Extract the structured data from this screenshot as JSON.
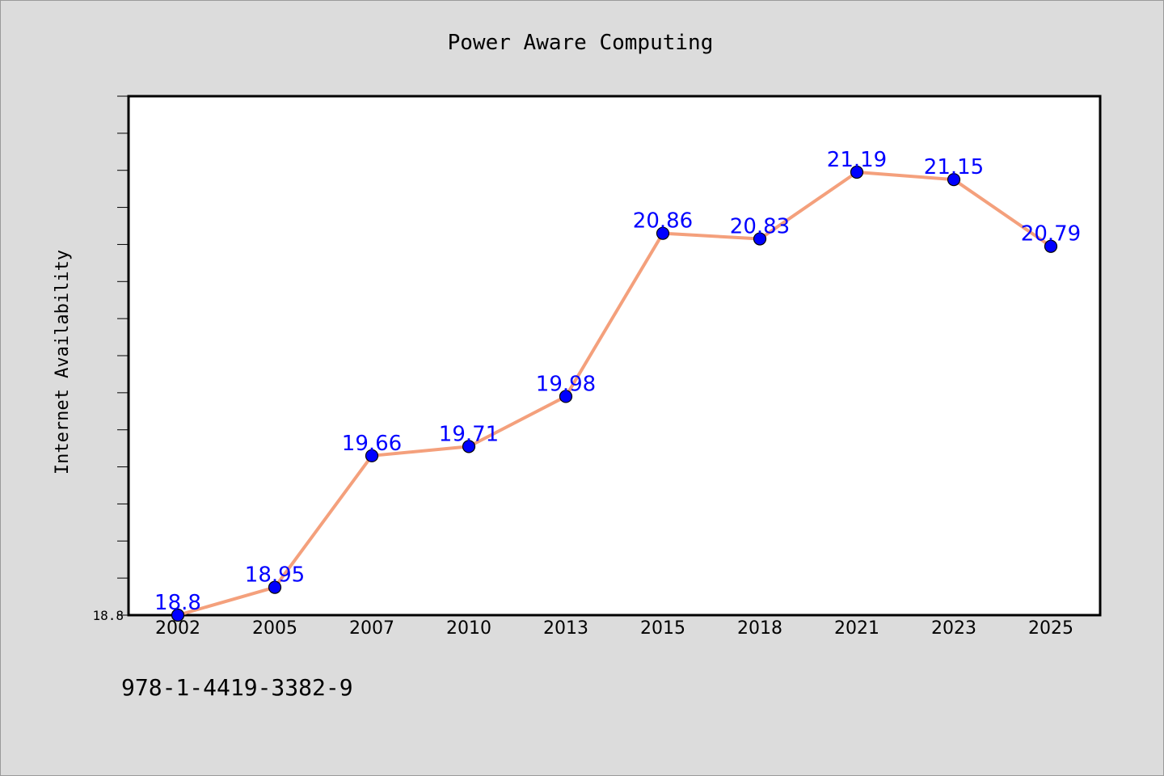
{
  "chart_data": {
    "type": "line",
    "title": "Power Aware Computing",
    "xlabel": "",
    "ylabel": "Internet Availability",
    "categories": [
      "2002",
      "2005",
      "2007",
      "2010",
      "2013",
      "2015",
      "2018",
      "2021",
      "2023",
      "2025"
    ],
    "series": [
      {
        "values": [
          18.8,
          18.95,
          19.66,
          19.71,
          19.98,
          20.86,
          20.83,
          21.19,
          21.15,
          20.79
        ]
      }
    ],
    "data_labels": [
      "18.8",
      "18.95",
      "19.66",
      "19.71",
      "19.98",
      "20.86",
      "20.83",
      "21.19",
      "21.15",
      "20.79"
    ],
    "yticks": [
      "18.8"
    ],
    "ylim": [
      18.8,
      21.6
    ],
    "grid": false,
    "legend": "none",
    "colors": {
      "line": "#f4a07c",
      "marker": "#0000ff",
      "label": "#0000ff",
      "plot_bg": "#ffffff",
      "figure_bg": "#dcdcdc"
    }
  },
  "caption": "978-1-4419-3382-9"
}
